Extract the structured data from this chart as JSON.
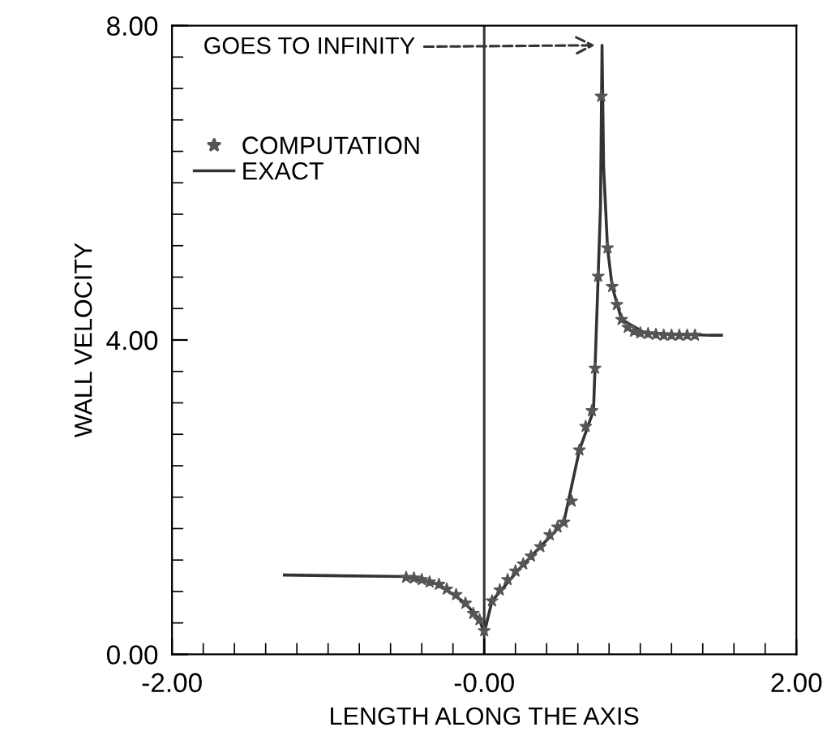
{
  "chart_data": {
    "type": "line",
    "xlabel": "LENGTH ALONG THE AXIS",
    "ylabel": "WALL VELOCITY",
    "xlim": [
      -2,
      2
    ],
    "ylim": [
      0,
      8
    ],
    "xticks": [
      {
        "value": -2,
        "label": "-2.00"
      },
      {
        "value": 0,
        "label": "-0.00"
      },
      {
        "value": 2,
        "label": "2.00"
      }
    ],
    "yticks": [
      {
        "value": 0,
        "label": "0.00"
      },
      {
        "value": 4,
        "label": "4.00"
      },
      {
        "value": 8,
        "label": "8.00"
      }
    ],
    "grid": false,
    "legend": "top left",
    "ref_lines": [
      {
        "axis": "x",
        "value": 0,
        "color": "#333333",
        "line_style": "solid"
      }
    ],
    "annotations": [
      {
        "text": "GOES TO INFINITY",
        "x": 0.74,
        "y": 7.75
      }
    ],
    "series": [
      {
        "name": "COMPUTATION",
        "type": "scatter",
        "marker": "star",
        "color": "#555555",
        "x": [
          -0.5,
          -0.45,
          -0.4,
          -0.35,
          -0.29,
          -0.24,
          -0.18,
          -0.12,
          -0.07,
          -0.03,
          0.0,
          0.05,
          0.1,
          0.15,
          0.2,
          0.25,
          0.3,
          0.36,
          0.42,
          0.47,
          0.51,
          0.56,
          0.61,
          0.65,
          0.69,
          0.71,
          0.73,
          0.75,
          0.79,
          0.82,
          0.85,
          0.88,
          0.92,
          0.96,
          1.0,
          1.05,
          1.1,
          1.15,
          1.2,
          1.25,
          1.3,
          1.35
        ],
        "values": [
          0.98,
          0.97,
          0.95,
          0.92,
          0.89,
          0.83,
          0.76,
          0.65,
          0.52,
          0.44,
          0.3,
          0.68,
          0.82,
          0.95,
          1.06,
          1.15,
          1.25,
          1.37,
          1.52,
          1.62,
          1.68,
          1.95,
          2.6,
          2.9,
          3.1,
          3.64,
          4.81,
          7.1,
          5.17,
          4.68,
          4.45,
          4.26,
          4.16,
          4.11,
          4.09,
          4.08,
          4.07,
          4.06,
          4.06,
          4.06,
          4.06,
          4.06
        ]
      },
      {
        "name": "EXACT",
        "marker": "none",
        "color": "#333333",
        "x": [
          -1.28,
          -0.9,
          -0.52,
          -0.29,
          -0.12,
          -0.03,
          0.0,
          0.05,
          0.23,
          0.36,
          0.51,
          0.61,
          0.7,
          0.71,
          0.73,
          0.745,
          0.755,
          0.765,
          0.79,
          0.82,
          0.88,
          1.03,
          1.45,
          1.52
        ],
        "values": [
          1.01,
          1.0,
          0.99,
          0.89,
          0.65,
          0.44,
          0.27,
          0.68,
          1.1,
          1.37,
          1.68,
          2.6,
          3.1,
          3.64,
          4.81,
          5.7,
          7.75,
          6.2,
          5.17,
          4.68,
          4.26,
          4.09,
          4.06,
          4.06
        ]
      }
    ]
  }
}
